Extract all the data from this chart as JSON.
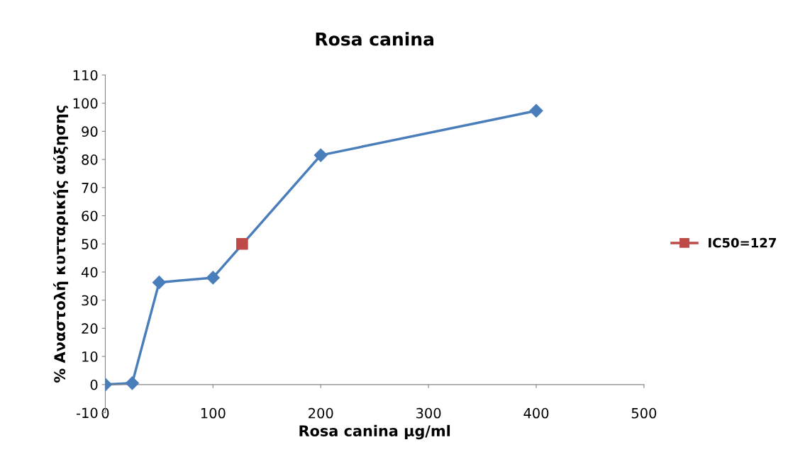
{
  "chart_data": {
    "type": "line",
    "title": "Rosa canina",
    "xlabel": "Rosa canina μg/ml",
    "ylabel": "% Αναστολή κυτταρικής αύξησης",
    "series": [
      {
        "color": "#4a7ebb",
        "marker": "diamond",
        "x": [
          0,
          25,
          50,
          100,
          200,
          400
        ],
        "values": [
          0,
          0.5,
          36.3,
          38,
          81.5,
          97.3
        ]
      },
      {
        "name": "IC50=127",
        "color": "#be4b48",
        "marker": "square",
        "x": [
          127
        ],
        "values": [
          50
        ]
      }
    ],
    "xlim": [
      0,
      500
    ],
    "xticks": [
      0,
      100,
      200,
      300,
      400,
      500
    ],
    "ylim": [
      -10,
      110
    ],
    "yticks": [
      -10,
      0,
      10,
      20,
      30,
      40,
      50,
      60,
      70,
      80,
      90,
      100,
      110
    ],
    "grid": false,
    "legend": "right",
    "line_style": "solid"
  }
}
